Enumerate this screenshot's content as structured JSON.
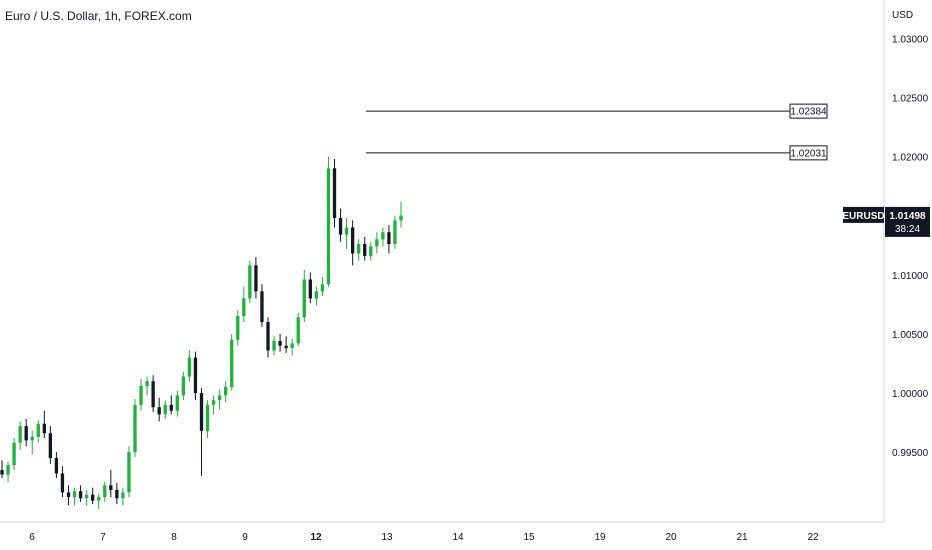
{
  "header": {
    "title": "Euro / U.S. Dollar, 1h, FOREX.com",
    "currency": "USD"
  },
  "chart_data": {
    "type": "candlestick",
    "symbol": "EURUSD",
    "last_price": "1.01498",
    "countdown": "38:24",
    "ylim": [
      0.9907,
      1.0307
    ],
    "y_ticks": [
      "1.03000",
      "1.02500",
      "1.02000",
      "1.01500",
      "1.01000",
      "1.00500",
      "1.00000",
      "0.99500"
    ],
    "y_tick_values": [
      1.03,
      1.025,
      1.02,
      1.015,
      1.01,
      1.005,
      1.0,
      0.995
    ],
    "x_ticks": [
      "6",
      "7",
      "8",
      "9",
      "12",
      "13",
      "14",
      "15",
      "19",
      "20",
      "21",
      "22"
    ],
    "x_domain": [
      0,
      11
    ],
    "x_tick_values": [
      0.15,
      1.15,
      2.15,
      3.15,
      4.15,
      5.15,
      6.15,
      7.15,
      8.15,
      9.15,
      10.15,
      11.15
    ],
    "x_bold_ticks": [
      "12"
    ],
    "colors": {
      "up": "#26a69a",
      "up_bright": "#22b13c",
      "down": "#131722",
      "line": "#131722",
      "axis": "#d1d4dc",
      "label_bg": "#131722"
    },
    "horizontal_levels": [
      {
        "label": "1.02384",
        "value": 1.02384,
        "x_start": 5.0,
        "x_end": 11.2
      },
      {
        "label": "1.02031",
        "value": 1.02031,
        "x_start": 5.0,
        "x_end": 11.2
      }
    ],
    "candles": [
      [
        0.9935,
        0.9943,
        0.9928,
        0.9931
      ],
      [
        0.9931,
        0.9942,
        0.9925,
        0.9939
      ],
      [
        0.9939,
        0.9962,
        0.9935,
        0.9958
      ],
      [
        0.9958,
        0.9976,
        0.9952,
        0.9972
      ],
      [
        0.9972,
        0.9978,
        0.9955,
        0.996
      ],
      [
        0.996,
        0.9968,
        0.9948,
        0.9963
      ],
      [
        0.9963,
        0.9977,
        0.9958,
        0.9974
      ],
      [
        0.9974,
        0.9985,
        0.9962,
        0.9966
      ],
      [
        0.9966,
        0.9972,
        0.994,
        0.9945
      ],
      [
        0.9945,
        0.995,
        0.9928,
        0.9932
      ],
      [
        0.9932,
        0.9938,
        0.9912,
        0.9916
      ],
      [
        0.9916,
        0.9922,
        0.9905,
        0.9912
      ],
      [
        0.9912,
        0.992,
        0.9905,
        0.9917
      ],
      [
        0.9917,
        0.9922,
        0.9908,
        0.9911
      ],
      [
        0.9911,
        0.9918,
        0.9905,
        0.9914
      ],
      [
        0.9914,
        0.992,
        0.9906,
        0.9909
      ],
      [
        0.9909,
        0.9915,
        0.9902,
        0.9912
      ],
      [
        0.9912,
        0.9925,
        0.9908,
        0.9922
      ],
      [
        0.9922,
        0.9935,
        0.9912,
        0.9918
      ],
      [
        0.9918,
        0.9924,
        0.9906,
        0.9911
      ],
      [
        0.9911,
        0.992,
        0.9905,
        0.9916
      ],
      [
        0.9916,
        0.9955,
        0.9912,
        0.995
      ],
      [
        0.995,
        0.9995,
        0.9946,
        0.999
      ],
      [
        0.999,
        1.0012,
        0.9985,
        1.0006
      ],
      [
        1.0006,
        1.0014,
        0.9998,
        1.001
      ],
      [
        1.001,
        1.0015,
        0.9984,
        0.9988
      ],
      [
        0.9988,
        0.9996,
        0.9976,
        0.9982
      ],
      [
        0.9982,
        0.9994,
        0.9978,
        0.999
      ],
      [
        0.999,
        0.9998,
        0.9982,
        0.9985
      ],
      [
        0.9985,
        1.0002,
        0.998,
        0.9998
      ],
      [
        0.9998,
        1.0018,
        0.9994,
        1.0014
      ],
      [
        1.0014,
        1.0036,
        1.001,
        1.003
      ],
      [
        1.003,
        1.0035,
        0.9994,
        1.0
      ],
      [
        1.0,
        1.0004,
        0.993,
        0.9968
      ],
      [
        0.9968,
        0.9994,
        0.9962,
        0.999
      ],
      [
        0.999,
        0.9998,
        0.9982,
        0.9994
      ],
      [
        0.9994,
        1.0003,
        0.9986,
        0.9998
      ],
      [
        0.9998,
        1.001,
        0.9992,
        1.0005
      ],
      [
        1.0005,
        1.005,
        1.0002,
        1.0045
      ],
      [
        1.0045,
        1.007,
        1.004,
        1.0065
      ],
      [
        1.0065,
        1.009,
        1.006,
        1.008
      ],
      [
        1.008,
        1.0112,
        1.0076,
        1.0108
      ],
      [
        1.0108,
        1.0115,
        1.008,
        1.0086
      ],
      [
        1.0086,
        1.0092,
        1.0056,
        1.006
      ],
      [
        1.006,
        1.0064,
        1.003,
        1.0036
      ],
      [
        1.0036,
        1.0048,
        1.0032,
        1.0044
      ],
      [
        1.0044,
        1.005,
        1.0035,
        1.004
      ],
      [
        1.004,
        1.0048,
        1.0034,
        1.0038
      ],
      [
        1.0038,
        1.0046,
        1.0032,
        1.0042
      ],
      [
        1.0042,
        1.0068,
        1.004,
        1.0064
      ],
      [
        1.0064,
        1.0104,
        1.006,
        1.0096
      ],
      [
        1.0096,
        1.0102,
        1.0076,
        1.008
      ],
      [
        1.008,
        1.009,
        1.0074,
        1.0086
      ],
      [
        1.0086,
        1.0098,
        1.0082,
        1.0092
      ],
      [
        1.0092,
        1.02,
        1.009,
        1.019
      ],
      [
        1.019,
        1.0198,
        1.014,
        1.0148
      ],
      [
        1.0148,
        1.0156,
        1.0128,
        1.0134
      ],
      [
        1.0134,
        1.0148,
        1.0122,
        1.014
      ],
      [
        1.014,
        1.0146,
        1.0108,
        1.0118
      ],
      [
        1.0118,
        1.013,
        1.0112,
        1.0126
      ],
      [
        1.0126,
        1.0132,
        1.0112,
        1.0116
      ],
      [
        1.0116,
        1.0128,
        1.0112,
        1.0124
      ],
      [
        1.0124,
        1.0136,
        1.0118,
        1.013
      ],
      [
        1.013,
        1.014,
        1.0124,
        1.0136
      ],
      [
        1.0136,
        1.0142,
        1.0118,
        1.0126
      ],
      [
        1.0126,
        1.015,
        1.0122,
        1.0146
      ],
      [
        1.0146,
        1.0162,
        1.014,
        1.015
      ]
    ]
  }
}
